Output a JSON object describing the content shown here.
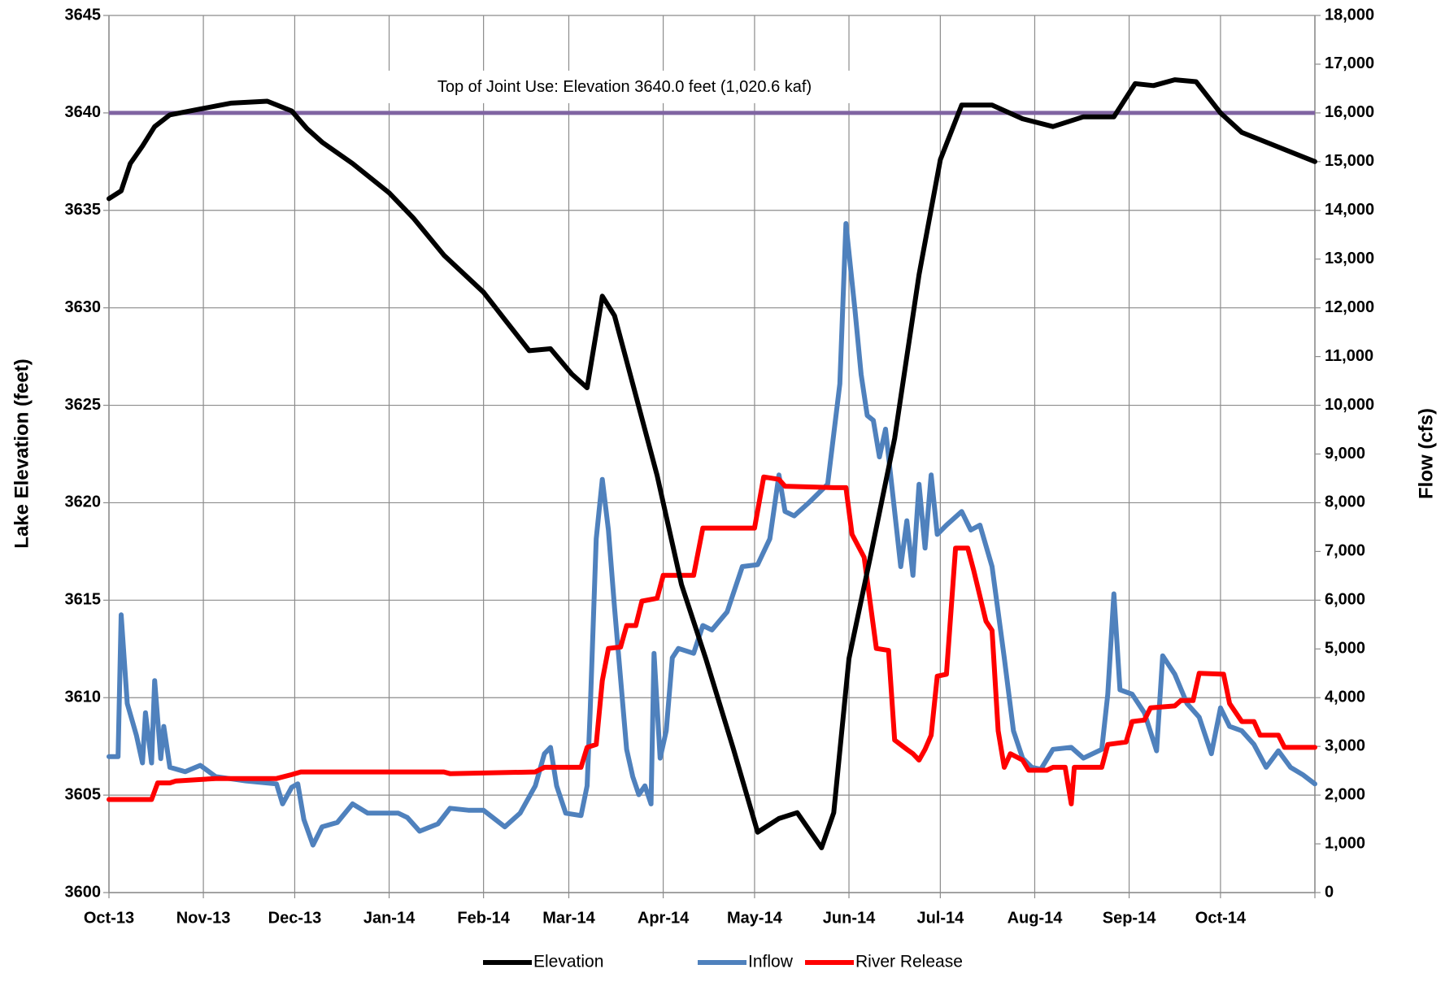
{
  "chart_data": {
    "type": "line",
    "ylabel": "Lake Elevation (feet)",
    "y2label": "Flow (cfs)",
    "xlim": [
      0,
      396
    ],
    "xticks": [
      {
        "value": 0,
        "label": "Oct-13"
      },
      {
        "value": 31,
        "label": "Nov-13"
      },
      {
        "value": 61,
        "label": "Dec-13"
      },
      {
        "value": 92,
        "label": "Jan-14"
      },
      {
        "value": 123,
        "label": "Feb-14"
      },
      {
        "value": 151,
        "label": "Mar-14"
      },
      {
        "value": 182,
        "label": "Apr-14"
      },
      {
        "value": 212,
        "label": "May-14"
      },
      {
        "value": 243,
        "label": "Jun-14"
      },
      {
        "value": 273,
        "label": "Jul-14"
      },
      {
        "value": 304,
        "label": "Aug-14"
      },
      {
        "value": 335,
        "label": "Sep-14"
      },
      {
        "value": 365,
        "label": "Oct-14"
      },
      {
        "value": 396,
        "label": ""
      }
    ],
    "ylim": [
      3600,
      3645
    ],
    "yticks": [
      3600,
      3605,
      3610,
      3615,
      3620,
      3625,
      3630,
      3635,
      3640,
      3645
    ],
    "y2lim": [
      0,
      18000
    ],
    "y2ticks": [
      0,
      {
        "value": 1000,
        "label": "1,000"
      },
      {
        "value": 2000,
        "label": "2,000"
      },
      {
        "value": 3000,
        "label": "3,000"
      },
      {
        "value": 4000,
        "label": "4,000"
      },
      {
        "value": 5000,
        "label": "5,000"
      },
      {
        "value": 6000,
        "label": "6,000"
      },
      {
        "value": 7000,
        "label": "7,000"
      },
      {
        "value": 8000,
        "label": "8,000"
      },
      {
        "value": 9000,
        "label": "9,000"
      },
      {
        "value": 10000,
        "label": "10,000"
      },
      {
        "value": 11000,
        "label": "11,000"
      },
      {
        "value": 12000,
        "label": "12,000"
      },
      {
        "value": 13000,
        "label": "13,000"
      },
      {
        "value": 14000,
        "label": "14,000"
      },
      {
        "value": 15000,
        "label": "15,000"
      },
      {
        "value": 16000,
        "label": "16,000"
      },
      {
        "value": 17000,
        "label": "17,000"
      },
      {
        "value": 18000,
        "label": "18,000"
      }
    ],
    "grid": true,
    "legend": "bottom",
    "reference_line": {
      "value": 3640,
      "label": "Top of Joint Use: Elevation 3640.0 feet (1,020.6 kaf)",
      "color": "#8064a2"
    },
    "series": [
      {
        "name": "Elevation",
        "color": "#000000",
        "axis": "y",
        "x": [
          0,
          4,
          7,
          11,
          15,
          20,
          30,
          40,
          52,
          60,
          65,
          70,
          80,
          92,
          100,
          110,
          123,
          130,
          138,
          145,
          152,
          157,
          162,
          166,
          172,
          180,
          188,
          196,
          205,
          213,
          220,
          226,
          234,
          238,
          243,
          250,
          258,
          266,
          273,
          280,
          290,
          300,
          310,
          320,
          330,
          337,
          343,
          350,
          357,
          365,
          372,
          380,
          396
        ],
        "values": [
          3635.6,
          3636.0,
          3637.4,
          3638.3,
          3639.3,
          3639.9,
          3640.2,
          3640.5,
          3640.6,
          3640.1,
          3639.2,
          3638.5,
          3637.4,
          3635.9,
          3634.6,
          3632.7,
          3630.8,
          3629.4,
          3627.8,
          3627.9,
          3626.6,
          3625.9,
          3630.6,
          3629.6,
          3626.1,
          3621.4,
          3615.8,
          3612.0,
          3607.4,
          3603.1,
          3603.8,
          3604.1,
          3602.3,
          3604.1,
          3612.0,
          3617.2,
          3623.3,
          3631.7,
          3637.6,
          3640.4,
          3640.4,
          3639.7,
          3639.3,
          3639.8,
          3639.8,
          3641.5,
          3641.4,
          3641.7,
          3641.6,
          3640.0,
          3639.0,
          3638.5,
          3637.5
        ]
      },
      {
        "name": "Inflow",
        "color": "#4f81bd",
        "axis": "y2",
        "x": [
          0,
          3,
          4,
          6,
          9,
          11,
          12,
          14,
          15,
          17,
          18,
          20,
          25,
          30,
          35,
          45,
          55,
          57,
          60,
          62,
          64,
          67,
          70,
          75,
          80,
          85,
          95,
          98,
          102,
          108,
          112,
          118,
          123,
          130,
          135,
          140,
          143,
          145,
          147,
          150,
          155,
          157,
          158,
          160,
          162,
          164,
          166,
          170,
          172,
          174,
          176,
          178,
          179,
          181,
          183,
          185,
          187,
          192,
          195,
          198,
          203,
          208,
          213,
          217,
          220,
          222,
          225,
          230,
          236,
          240,
          242,
          245,
          247,
          249,
          251,
          253,
          255,
          258,
          260,
          262,
          264,
          266,
          268,
          270,
          272,
          275,
          280,
          283,
          286,
          290,
          294,
          297,
          300,
          303,
          306,
          310,
          316,
          320,
          326,
          328,
          330,
          332,
          336,
          340,
          344,
          346,
          350,
          354,
          358,
          362,
          365,
          368,
          372,
          376,
          380,
          384,
          388,
          392,
          396
        ],
        "values": [
          2790,
          2790,
          5700,
          3880,
          3230,
          2660,
          3690,
          2660,
          4350,
          2750,
          3410,
          2570,
          2480,
          2610,
          2380,
          2290,
          2230,
          1820,
          2160,
          2230,
          1500,
          975,
          1350,
          1440,
          1820,
          1630,
          1630,
          1540,
          1260,
          1410,
          1730,
          1690,
          1690,
          1350,
          1630,
          2190,
          2850,
          2980,
          2190,
          1630,
          1580,
          2190,
          3690,
          7260,
          8480,
          7440,
          5850,
          2940,
          2380,
          2010,
          2190,
          1820,
          4910,
          2760,
          3320,
          4820,
          5010,
          4910,
          5480,
          5390,
          5760,
          6690,
          6730,
          7260,
          8570,
          7820,
          7730,
          8010,
          8380,
          10440,
          13730,
          11940,
          10630,
          9790,
          9690,
          8940,
          9510,
          7820,
          6690,
          7630,
          6510,
          8380,
          7070,
          8570,
          7350,
          7540,
          7820,
          7440,
          7540,
          6690,
          4820,
          3320,
          2760,
          2570,
          2530,
          2940,
          2980,
          2760,
          2940,
          4070,
          6130,
          4160,
          4070,
          3690,
          2910,
          4860,
          4480,
          3880,
          3600,
          2850,
          3790,
          3410,
          3320,
          3040,
          2570,
          2910,
          2570,
          2420,
          2230
        ]
      },
      {
        "name": "River Release",
        "color": "#ff0000",
        "axis": "y2",
        "x": [
          0,
          14,
          16,
          20,
          22,
          35,
          55,
          60,
          63,
          110,
          112,
          140,
          143,
          155,
          157,
          160,
          162,
          164,
          168,
          170,
          173,
          175,
          180,
          182,
          192,
          195,
          212,
          215,
          220,
          222,
          238,
          242,
          244,
          248,
          250,
          252,
          256,
          258,
          262,
          264,
          266,
          268,
          270,
          272,
          275,
          278,
          282,
          284,
          288,
          290,
          292,
          294,
          296,
          300,
          302,
          308,
          310,
          314,
          316,
          317,
          326,
          328,
          334,
          336,
          340,
          342,
          350,
          352,
          356,
          358,
          366,
          368,
          372,
          376,
          378,
          384,
          386,
          396
        ],
        "values": [
          1910,
          1910,
          2250,
          2250,
          2290,
          2340,
          2340,
          2420,
          2475,
          2475,
          2440,
          2475,
          2570,
          2570,
          2980,
          3040,
          4350,
          5010,
          5040,
          5480,
          5480,
          5980,
          6040,
          6510,
          6510,
          7480,
          7480,
          8530,
          8480,
          8340,
          8310,
          8310,
          7350,
          6880,
          5940,
          5010,
          4970,
          3130,
          2940,
          2850,
          2720,
          2940,
          3230,
          4440,
          4480,
          7070,
          7070,
          6600,
          5570,
          5380,
          3320,
          2570,
          2850,
          2720,
          2510,
          2510,
          2570,
          2570,
          1820,
          2570,
          2570,
          3040,
          3090,
          3510,
          3540,
          3790,
          3830,
          3940,
          3940,
          4500,
          4480,
          3880,
          3510,
          3510,
          3230,
          3230,
          2980,
          2980
        ]
      }
    ]
  }
}
